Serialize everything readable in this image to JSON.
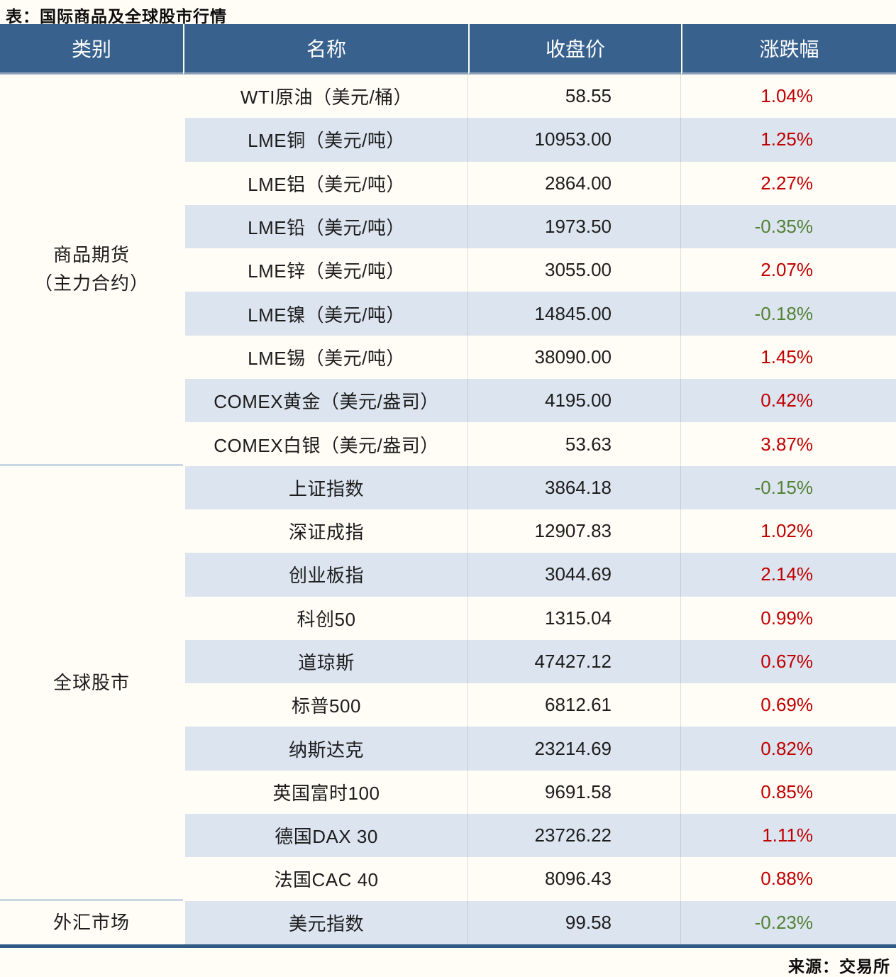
{
  "page": {
    "title": "表：国际商品及全球股市行情",
    "source": "来源：交易所"
  },
  "colors": {
    "header_bg": "#38618e",
    "stripe_row_bg": "#dce4ef",
    "plain_row_bg": "#fffdf6",
    "up_red": "#c00000",
    "down_green": "#538135",
    "bottom_border": "#2f5a85",
    "section_divider": "#c9d6e4"
  },
  "table": {
    "headers": [
      "类别",
      "名称",
      "收盘价",
      "涨跌幅"
    ],
    "groups": [
      {
        "category": "商品期货（主力合约）",
        "category_lines": [
          "商品期货",
          "（主力合约）"
        ],
        "row_span": 9
      },
      {
        "category": "全球股市",
        "category_lines": [
          "全球股市"
        ],
        "row_span": 10
      },
      {
        "category": "外汇市场",
        "category_lines": [
          "外汇市场"
        ],
        "row_span": 1
      }
    ],
    "rows": [
      {
        "name": "WTI原油（美元/桶）",
        "close": "58.55",
        "change": "1.04%",
        "direction": "up"
      },
      {
        "name": "LME铜（美元/吨）",
        "close": "10953.00",
        "change": "1.25%",
        "direction": "up"
      },
      {
        "name": "LME铝（美元/吨）",
        "close": "2864.00",
        "change": "2.27%",
        "direction": "up"
      },
      {
        "name": "LME铅（美元/吨）",
        "close": "1973.50",
        "change": "-0.35%",
        "direction": "down"
      },
      {
        "name": "LME锌（美元/吨）",
        "close": "3055.00",
        "change": "2.07%",
        "direction": "up"
      },
      {
        "name": "LME镍（美元/吨）",
        "close": "14845.00",
        "change": "-0.18%",
        "direction": "down"
      },
      {
        "name": "LME锡（美元/吨）",
        "close": "38090.00",
        "change": "1.45%",
        "direction": "up"
      },
      {
        "name": "COMEX黄金（美元/盎司）",
        "close": "4195.00",
        "change": "0.42%",
        "direction": "up"
      },
      {
        "name": "COMEX白银（美元/盎司）",
        "close": "53.63",
        "change": "3.87%",
        "direction": "up"
      },
      {
        "name": "上证指数",
        "close": "3864.18",
        "change": "-0.15%",
        "direction": "down"
      },
      {
        "name": "深证成指",
        "close": "12907.83",
        "change": "1.02%",
        "direction": "up"
      },
      {
        "name": "创业板指",
        "close": "3044.69",
        "change": "2.14%",
        "direction": "up"
      },
      {
        "name": "科创50",
        "close": "1315.04",
        "change": "0.99%",
        "direction": "up"
      },
      {
        "name": "道琼斯",
        "close": "47427.12",
        "change": "0.67%",
        "direction": "up"
      },
      {
        "name": "标普500",
        "close": "6812.61",
        "change": "0.69%",
        "direction": "up"
      },
      {
        "name": "纳斯达克",
        "close": "23214.69",
        "change": "0.82%",
        "direction": "up"
      },
      {
        "name": "英国富时100",
        "close": "9691.58",
        "change": "0.85%",
        "direction": "up"
      },
      {
        "name": "德国DAX 30",
        "close": "23726.22",
        "change": "1.11%",
        "direction": "up"
      },
      {
        "name": "法国CAC 40",
        "close": "8096.43",
        "change": "0.88%",
        "direction": "up"
      },
      {
        "name": "美元指数",
        "close": "99.58",
        "change": "-0.23%",
        "direction": "down"
      }
    ]
  },
  "chart_data": {
    "type": "table",
    "title": "表：国际商品及全球股市行情",
    "columns": [
      "类别",
      "名称",
      "收盘价",
      "涨跌幅"
    ],
    "rows": [
      [
        "商品期货（主力合约）",
        "WTI原油（美元/桶）",
        58.55,
        "1.04%"
      ],
      [
        "商品期货（主力合约）",
        "LME铜（美元/吨）",
        10953.0,
        "1.25%"
      ],
      [
        "商品期货（主力合约）",
        "LME铝（美元/吨）",
        2864.0,
        "2.27%"
      ],
      [
        "商品期货（主力合约）",
        "LME铅（美元/吨）",
        1973.5,
        "-0.35%"
      ],
      [
        "商品期货（主力合约）",
        "LME锌（美元/吨）",
        3055.0,
        "2.07%"
      ],
      [
        "商品期货（主力合约）",
        "LME镍（美元/吨）",
        14845.0,
        "-0.18%"
      ],
      [
        "商品期货（主力合约）",
        "LME锡（美元/吨）",
        38090.0,
        "1.45%"
      ],
      [
        "商品期货（主力合约）",
        "COMEX黄金（美元/盎司）",
        4195.0,
        "0.42%"
      ],
      [
        "商品期货（主力合约）",
        "COMEX白银（美元/盎司）",
        53.63,
        "3.87%"
      ],
      [
        "全球股市",
        "上证指数",
        3864.18,
        "-0.15%"
      ],
      [
        "全球股市",
        "深证成指",
        12907.83,
        "1.02%"
      ],
      [
        "全球股市",
        "创业板指",
        3044.69,
        "2.14%"
      ],
      [
        "全球股市",
        "科创50",
        1315.04,
        "0.99%"
      ],
      [
        "全球股市",
        "道琼斯",
        47427.12,
        "0.67%"
      ],
      [
        "全球股市",
        "标普500",
        6812.61,
        "0.69%"
      ],
      [
        "全球股市",
        "纳斯达克",
        23214.69,
        "0.82%"
      ],
      [
        "全球股市",
        "英国富时100",
        9691.58,
        "0.85%"
      ],
      [
        "全球股市",
        "德国DAX 30",
        23726.22,
        "1.11%"
      ],
      [
        "全球股市",
        "法国CAC 40",
        8096.43,
        "0.88%"
      ],
      [
        "外汇市场",
        "美元指数",
        99.58,
        "-0.23%"
      ]
    ],
    "source": "来源：交易所"
  }
}
